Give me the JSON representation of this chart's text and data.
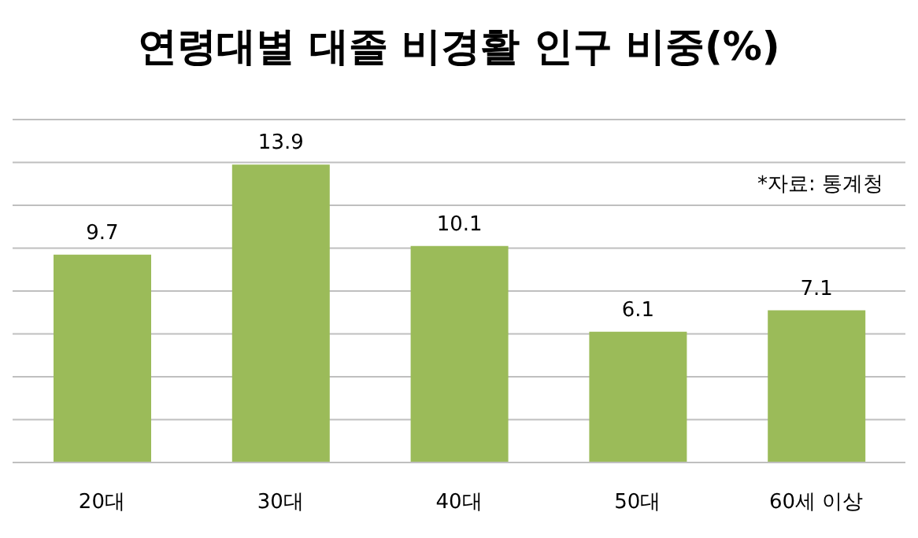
{
  "chart_data": {
    "type": "bar",
    "title": "연령대별 대졸 비경활 인구 비중(%)",
    "categories": [
      "20대",
      "30대",
      "40대",
      "50대",
      "60세 이상"
    ],
    "values": [
      9.7,
      13.9,
      10.1,
      6.1,
      7.1
    ],
    "color": "#9bbb59",
    "ylim": [
      0,
      16
    ],
    "yticks": [
      {
        "value": 0,
        "label": null
      },
      {
        "value": 2,
        "label": null
      },
      {
        "value": 4,
        "label": null
      },
      {
        "value": 6,
        "label": null
      },
      {
        "value": 8,
        "label": null
      },
      {
        "value": 10,
        "label": null
      },
      {
        "value": 12,
        "label": null
      },
      {
        "value": 14,
        "label": null
      },
      {
        "value": 16,
        "label": null
      }
    ],
    "tick_labels": "x",
    "grid": "y",
    "data_labels": true,
    "annotations": [
      "*자료: 통계청"
    ]
  }
}
